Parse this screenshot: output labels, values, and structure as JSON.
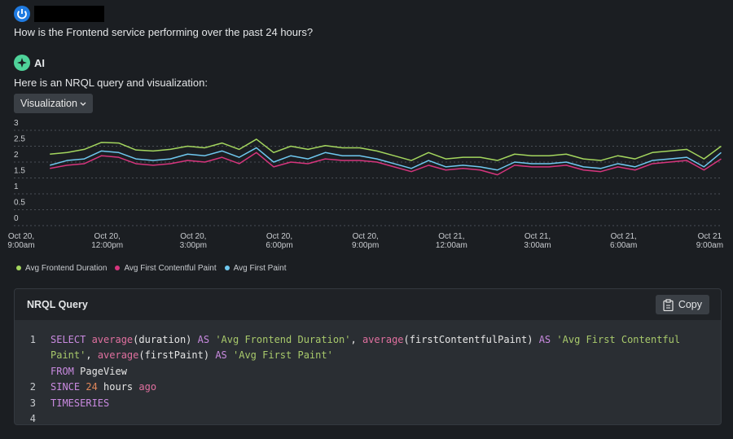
{
  "question": "How is the Frontend service performing over the past 24 hours?",
  "assistant": {
    "name": "AI",
    "intro": "Here is an NRQL query and visualization:",
    "view_button": "Visualization"
  },
  "chart_data": {
    "type": "line",
    "x": [
      1,
      1.6,
      2.2,
      2.8,
      3.4,
      4,
      4.6,
      5.2,
      5.8,
      6.4,
      7,
      7.6,
      8.2,
      8.8,
      9.4,
      10,
      10.6,
      11.2,
      11.8,
      12.4,
      13,
      13.6,
      14.2,
      14.8,
      15.4,
      16,
      16.6,
      17.2,
      17.8,
      18.4,
      19,
      19.6,
      20.2,
      20.8,
      21.4,
      22,
      22.6,
      23.2,
      23.8,
      24.4
    ],
    "xlim": [
      0,
      24.5
    ],
    "xticks": [
      {
        "value": 0,
        "label": "Oct 20, 9:00am"
      },
      {
        "value": 3,
        "label": "Oct 20, 12:00pm"
      },
      {
        "value": 6,
        "label": "Oct 20, 3:00pm"
      },
      {
        "value": 9,
        "label": "Oct 20, 6:00pm"
      },
      {
        "value": 12,
        "label": "Oct 20, 9:00pm"
      },
      {
        "value": 15,
        "label": "Oct 21, 12:00am"
      },
      {
        "value": 18,
        "label": "Oct 21, 3:00am"
      },
      {
        "value": 21,
        "label": "Oct 21, 6:00am"
      },
      {
        "value": 24,
        "label": "Oct 21 9:00am"
      }
    ],
    "ylim": [
      0,
      3
    ],
    "yticks": [
      0,
      0.5,
      1,
      1.5,
      2,
      2.5,
      3
    ],
    "grid": true,
    "series": [
      {
        "name": "Avg Frontend Duration",
        "color": "#a4d65e",
        "values": [
          2.25,
          2.3,
          2.4,
          2.62,
          2.6,
          2.38,
          2.35,
          2.4,
          2.5,
          2.45,
          2.6,
          2.4,
          2.72,
          2.3,
          2.5,
          2.4,
          2.52,
          2.45,
          2.45,
          2.35,
          2.2,
          2.05,
          2.3,
          2.1,
          2.15,
          2.15,
          2.05,
          2.25,
          2.2,
          2.2,
          2.25,
          2.1,
          2.05,
          2.2,
          2.1,
          2.3,
          2.35,
          2.4,
          2.1,
          2.5
        ]
      },
      {
        "name": "Avg First Contentful Paint",
        "color": "#d6357d",
        "values": [
          1.8,
          1.9,
          1.95,
          2.2,
          2.15,
          1.95,
          1.9,
          1.95,
          2.05,
          2.0,
          2.15,
          1.95,
          2.3,
          1.85,
          2.0,
          1.95,
          2.1,
          2.05,
          2.05,
          2.0,
          1.85,
          1.7,
          1.9,
          1.75,
          1.8,
          1.75,
          1.6,
          1.9,
          1.85,
          1.85,
          1.9,
          1.75,
          1.7,
          1.85,
          1.75,
          1.95,
          2.0,
          2.05,
          1.75,
          2.1
        ]
      },
      {
        "name": "Avg First Paint",
        "color": "#6fc8ef",
        "values": [
          1.9,
          2.05,
          2.1,
          2.35,
          2.3,
          2.1,
          2.05,
          2.1,
          2.25,
          2.2,
          2.35,
          2.15,
          2.45,
          2.0,
          2.2,
          2.1,
          2.3,
          2.2,
          2.2,
          2.1,
          1.95,
          1.8,
          2.05,
          1.85,
          1.9,
          1.85,
          1.75,
          2.0,
          1.95,
          1.95,
          2.0,
          1.85,
          1.8,
          1.95,
          1.85,
          2.05,
          2.1,
          2.15,
          1.85,
          2.3
        ]
      }
    ]
  },
  "query_panel": {
    "title": "NRQL Query",
    "copy_button": "Copy",
    "lines": [
      {
        "number": 1,
        "tokens": [
          {
            "text": "SELECT ",
            "color": "#c98ae0"
          },
          {
            "text": "average",
            "color": "#e0709f"
          },
          {
            "text": "(duration) ",
            "color": "#e6e6e6"
          },
          {
            "text": "AS ",
            "color": "#c98ae0"
          },
          {
            "text": "'Avg Frontend Duration'",
            "color": "#a8c96b"
          },
          {
            "text": ", ",
            "color": "#e6e6e6"
          },
          {
            "text": "average",
            "color": "#e0709f"
          },
          {
            "text": "(firstContentfulPaint) ",
            "color": "#e6e6e6"
          },
          {
            "text": "AS ",
            "color": "#c98ae0"
          },
          {
            "text": "'Avg First Contentful Paint'",
            "color": "#a8c96b"
          },
          {
            "text": ", ",
            "color": "#e6e6e6"
          },
          {
            "text": "average",
            "color": "#e0709f"
          },
          {
            "text": "(firstPaint) ",
            "color": "#e6e6e6"
          },
          {
            "text": "AS ",
            "color": "#c98ae0"
          },
          {
            "text": "'Avg First Paint'",
            "color": "#a8c96b"
          }
        ]
      },
      {
        "number": null,
        "tokens": [
          {
            "text": "FROM ",
            "color": "#c98ae0"
          },
          {
            "text": "PageView",
            "color": "#e6e6e6"
          }
        ]
      },
      {
        "number": 2,
        "tokens": [
          {
            "text": "SINCE ",
            "color": "#c98ae0"
          },
          {
            "text": "24",
            "color": "#e0875a"
          },
          {
            "text": " hours ",
            "color": "#e6e6e6"
          },
          {
            "text": "ago",
            "color": "#e0709f"
          }
        ]
      },
      {
        "number": 3,
        "tokens": [
          {
            "text": "TIMESERIES",
            "color": "#c98ae0"
          }
        ]
      },
      {
        "number": 4,
        "tokens": []
      }
    ]
  }
}
